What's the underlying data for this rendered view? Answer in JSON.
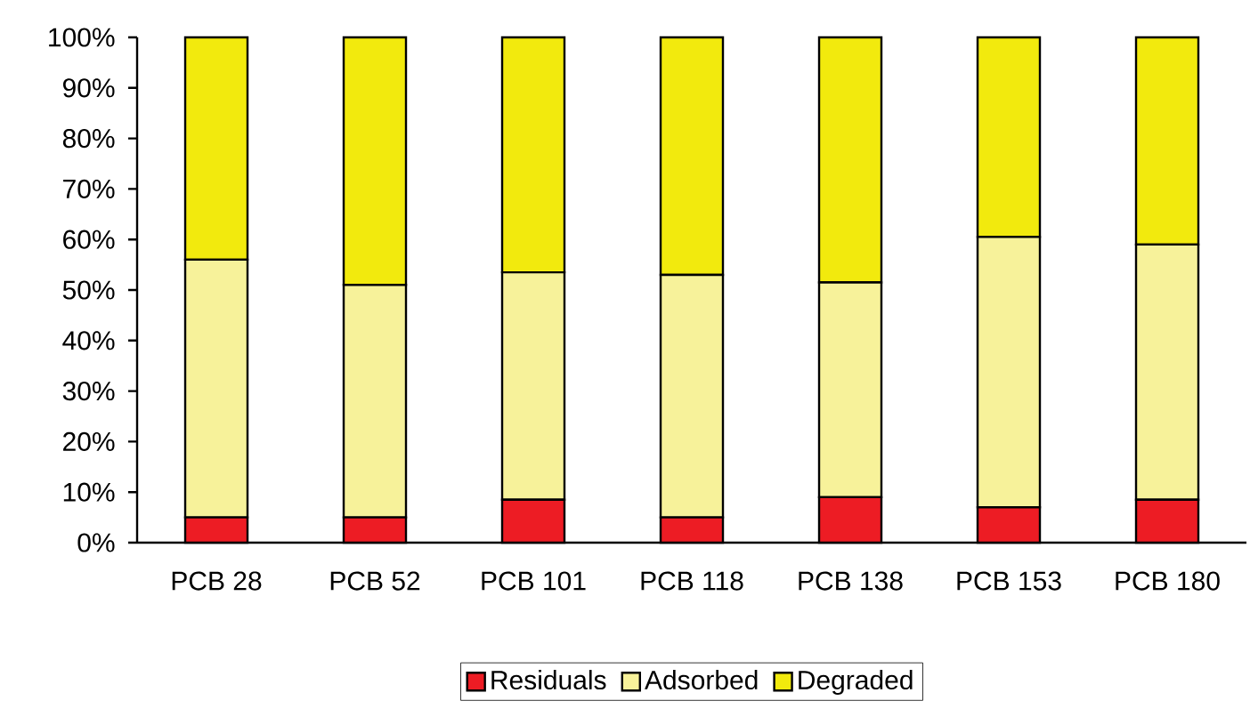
{
  "chart_data": {
    "type": "bar",
    "stacked": true,
    "categories": [
      "PCB 28",
      "PCB 52",
      "PCB 101",
      "PCB 118",
      "PCB 138",
      "PCB 153",
      "PCB 180"
    ],
    "series": [
      {
        "name": "Residuals",
        "color": "#ed1c24",
        "values": [
          5,
          5,
          8.5,
          5,
          9,
          7,
          8.5
        ]
      },
      {
        "name": "Adsorbed",
        "color": "#f7f29a",
        "values": [
          51,
          46,
          45,
          48,
          42.5,
          53.5,
          50.5
        ]
      },
      {
        "name": "Degraded",
        "color": "#f2ea0d",
        "values": [
          44,
          49,
          46.5,
          47,
          48.5,
          39.5,
          41
        ]
      }
    ],
    "ylim": [
      0,
      100
    ],
    "yticks": [
      {
        "value": 0,
        "label": "0%"
      },
      {
        "value": 10,
        "label": "10%"
      },
      {
        "value": 20,
        "label": "20%"
      },
      {
        "value": 30,
        "label": "30%"
      },
      {
        "value": 40,
        "label": "40%"
      },
      {
        "value": 50,
        "label": "50%"
      },
      {
        "value": 60,
        "label": "60%"
      },
      {
        "value": 70,
        "label": "70%"
      },
      {
        "value": 80,
        "label": "80%"
      },
      {
        "value": 90,
        "label": "90%"
      },
      {
        "value": 100,
        "label": "100%"
      }
    ],
    "grid": false,
    "legend": "bottom"
  }
}
